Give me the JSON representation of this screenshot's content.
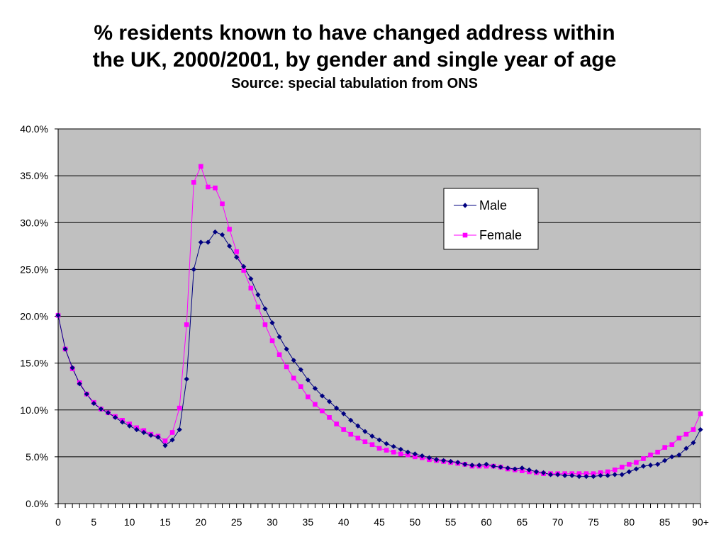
{
  "chart_data": {
    "type": "line",
    "title_line1": "% residents known to have changed address within",
    "title_line2": "the UK, 2000/2001, by gender and single year of age",
    "subtitle": "Source: special tabulation from ONS",
    "xlabel": "",
    "ylabel": "",
    "x_ticks": [
      "0",
      "5",
      "10",
      "15",
      "20",
      "25",
      "30",
      "35",
      "40",
      "45",
      "50",
      "55",
      "60",
      "65",
      "70",
      "75",
      "80",
      "85",
      "90+"
    ],
    "y_ticks": [
      "0.0%",
      "5.0%",
      "10.0%",
      "15.0%",
      "20.0%",
      "25.0%",
      "30.0%",
      "35.0%",
      "40.0%"
    ],
    "ylim": [
      0,
      40
    ],
    "x": [
      0,
      1,
      2,
      3,
      4,
      5,
      6,
      7,
      8,
      9,
      10,
      11,
      12,
      13,
      14,
      15,
      16,
      17,
      18,
      19,
      20,
      21,
      22,
      23,
      24,
      25,
      26,
      27,
      28,
      29,
      30,
      31,
      32,
      33,
      34,
      35,
      36,
      37,
      38,
      39,
      40,
      41,
      42,
      43,
      44,
      45,
      46,
      47,
      48,
      49,
      50,
      51,
      52,
      53,
      54,
      55,
      56,
      57,
      58,
      59,
      60,
      61,
      62,
      63,
      64,
      65,
      66,
      67,
      68,
      69,
      70,
      71,
      72,
      73,
      74,
      75,
      76,
      77,
      78,
      79,
      80,
      81,
      82,
      83,
      84,
      85,
      86,
      87,
      88,
      89,
      90
    ],
    "grid": true,
    "plot_background": "#c0c0c0",
    "legend_position": "top-right",
    "series": [
      {
        "name": "Male",
        "color": "#000080",
        "marker": "diamond",
        "values": [
          20.1,
          16.5,
          14.5,
          12.8,
          11.7,
          10.7,
          10.1,
          9.7,
          9.2,
          8.7,
          8.3,
          7.9,
          7.6,
          7.3,
          7.1,
          6.2,
          6.8,
          7.9,
          13.3,
          25.0,
          27.9,
          27.9,
          29.0,
          28.7,
          27.5,
          26.3,
          25.3,
          24.0,
          22.3,
          20.8,
          19.3,
          17.8,
          16.5,
          15.3,
          14.3,
          13.2,
          12.3,
          11.5,
          10.9,
          10.2,
          9.6,
          8.9,
          8.3,
          7.7,
          7.2,
          6.8,
          6.4,
          6.1,
          5.8,
          5.5,
          5.3,
          5.1,
          4.9,
          4.7,
          4.6,
          4.5,
          4.4,
          4.2,
          4.1,
          4.1,
          4.2,
          4.0,
          3.9,
          3.8,
          3.7,
          3.8,
          3.6,
          3.4,
          3.3,
          3.1,
          3.1,
          3.0,
          3.0,
          2.9,
          2.9,
          2.9,
          3.0,
          3.0,
          3.1,
          3.1,
          3.4,
          3.7,
          4.0,
          4.1,
          4.2,
          4.6,
          5.0,
          5.2,
          5.9,
          6.5,
          7.9
        ]
      },
      {
        "name": "Female",
        "color": "#ff00ff",
        "marker": "square",
        "values": [
          20.1,
          16.5,
          14.4,
          12.9,
          11.7,
          10.8,
          10.1,
          9.7,
          9.3,
          8.9,
          8.5,
          8.1,
          7.8,
          7.4,
          7.2,
          6.7,
          7.6,
          10.2,
          19.1,
          34.3,
          36.0,
          33.8,
          33.7,
          32.0,
          29.3,
          26.9,
          24.9,
          23.0,
          21.0,
          19.1,
          17.4,
          15.9,
          14.6,
          13.4,
          12.5,
          11.4,
          10.6,
          9.9,
          9.2,
          8.5,
          7.9,
          7.4,
          7.0,
          6.6,
          6.3,
          5.9,
          5.7,
          5.5,
          5.3,
          5.2,
          5.0,
          4.9,
          4.7,
          4.6,
          4.5,
          4.4,
          4.3,
          4.2,
          4.0,
          4.0,
          4.0,
          4.0,
          3.9,
          3.7,
          3.6,
          3.5,
          3.4,
          3.3,
          3.2,
          3.2,
          3.2,
          3.2,
          3.2,
          3.2,
          3.2,
          3.2,
          3.3,
          3.4,
          3.6,
          3.9,
          4.2,
          4.4,
          4.8,
          5.2,
          5.5,
          6.0,
          6.3,
          7.0,
          7.4,
          7.9,
          9.6
        ]
      }
    ]
  }
}
